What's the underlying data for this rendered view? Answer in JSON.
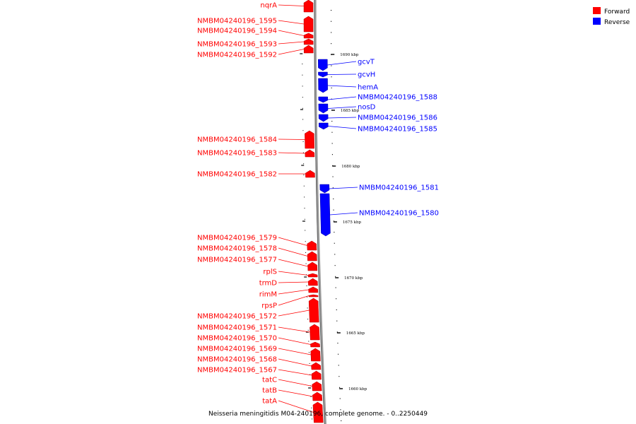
{
  "caption": "Neisseria meningitidis M04-240196, complete genome. - 0..2250449",
  "legend": [
    {
      "label": "Forward",
      "color": "#ff0000"
    },
    {
      "label": "Reverse",
      "color": "#0000ff"
    }
  ],
  "colors": {
    "forward": "#ff0000",
    "reverse": "#0000ff",
    "backbone": "#888888"
  },
  "ticks": [
    "1690 kbp",
    "1685 kbp",
    "1680 kbp",
    "1675 kbp",
    "1670 kbp",
    "1665 kbp",
    "1660 kbp"
  ],
  "forward_genes": [
    "nqrA",
    "NMBM04240196_1595",
    "NMBM04240196_1594",
    "NMBM04240196_1593",
    "NMBM04240196_1592",
    "NMBM04240196_1584",
    "NMBM04240196_1583",
    "NMBM04240196_1582",
    "NMBM04240196_1579",
    "NMBM04240196_1578",
    "NMBM04240196_1577",
    "rplS",
    "trmD",
    "rimM",
    "rpsP",
    "NMBM04240196_1572",
    "NMBM04240196_1571",
    "NMBM04240196_1570",
    "NMBM04240196_1569",
    "NMBM04240196_1568",
    "NMBM04240196_1567",
    "tatC",
    "tatB",
    "tatA"
  ],
  "reverse_genes": [
    "gcvT",
    "gcvH",
    "hemA",
    "NMBM04240196_1588",
    "nosD",
    "NMBM04240196_1586",
    "NMBM04240196_1585",
    "NMBM04240196_1581",
    "NMBM04240196_1580"
  ]
}
